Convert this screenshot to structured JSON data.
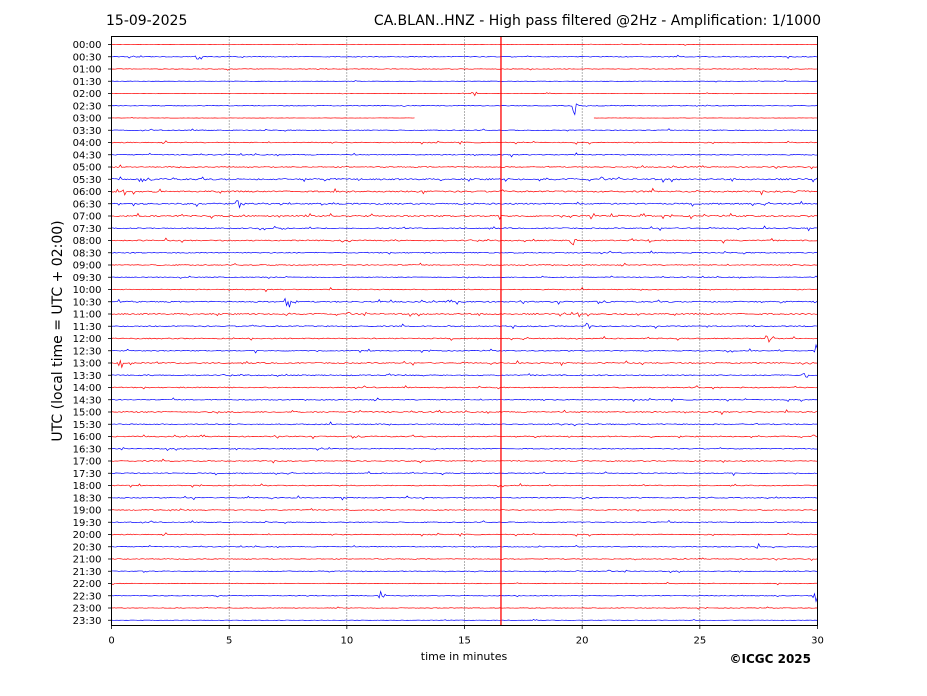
{
  "chart_data": {
    "type": "line",
    "title_left": "15-09-2025",
    "title": "CA.BLAN..HNZ - High pass filtered @2Hz - Amplification: 1/1000",
    "xlabel": "time in minutes",
    "ylabel": "UTC (local time = UTC + 02:00)",
    "copyright": "©ICGC 2025",
    "xlim": [
      0,
      30
    ],
    "x_ticks": [
      "0",
      "5",
      "10",
      "15",
      "20",
      "25",
      "30"
    ],
    "x_tick_values": [
      0,
      5,
      10,
      15,
      20,
      25,
      30
    ],
    "grid": "vertical dotted",
    "trace_colors": [
      "#ff0000",
      "#0000ff"
    ],
    "marker_color": "#ff0000",
    "marker_minute": 16.55,
    "y_labels": [
      "00:00",
      "00:30",
      "01:00",
      "01:30",
      "02:00",
      "02:30",
      "03:00",
      "03:30",
      "04:00",
      "04:30",
      "05:00",
      "05:30",
      "06:00",
      "06:30",
      "07:00",
      "07:30",
      "08:00",
      "08:30",
      "09:00",
      "09:30",
      "10:00",
      "10:30",
      "11:00",
      "11:30",
      "12:00",
      "12:30",
      "13:00",
      "13:30",
      "14:00",
      "14:30",
      "15:00",
      "15:30",
      "16:00",
      "16:30",
      "17:00",
      "17:30",
      "18:00",
      "18:30",
      "19:00",
      "19:30",
      "20:00",
      "20:30",
      "21:00",
      "21:30",
      "22:00",
      "22:30",
      "23:00",
      "23:30"
    ],
    "noise_level": [
      0.3,
      0.5,
      0.4,
      0.3,
      0.3,
      0.4,
      0.2,
      0.5,
      0.6,
      0.6,
      0.6,
      1.0,
      1.0,
      0.9,
      0.9,
      0.7,
      0.8,
      0.7,
      0.6,
      0.5,
      0.6,
      0.8,
      0.8,
      0.7,
      0.7,
      0.6,
      0.7,
      0.7,
      0.7,
      0.6,
      0.7,
      0.7,
      0.7,
      0.6,
      0.6,
      0.6,
      0.6,
      0.6,
      0.6,
      0.6,
      0.6,
      0.5,
      0.5,
      0.5,
      0.4,
      0.4,
      0.4,
      0.3
    ],
    "events": [
      {
        "row": 1,
        "minute": 3.7,
        "amp": 9
      },
      {
        "row": 4,
        "minute": 15.4,
        "amp": 4
      },
      {
        "row": 5,
        "minute": 19.7,
        "amp": 10
      },
      {
        "row": 6,
        "minute": 20.1,
        "amp": 9
      },
      {
        "row": 13,
        "minute": 5.4,
        "amp": 7
      },
      {
        "row": 16,
        "minute": 19.6,
        "amp": 6
      },
      {
        "row": 21,
        "minute": 7.5,
        "amp": 10
      },
      {
        "row": 22,
        "minute": 7.5,
        "amp": 7
      },
      {
        "row": 23,
        "minute": 20.2,
        "amp": 6
      },
      {
        "row": 24,
        "minute": 27.9,
        "amp": 6
      },
      {
        "row": 25,
        "minute": 29.9,
        "amp": 10
      },
      {
        "row": 26,
        "minute": 0.4,
        "amp": 7
      },
      {
        "row": 27,
        "minute": 29.5,
        "amp": 5
      },
      {
        "row": 41,
        "minute": 27.5,
        "amp": 6
      },
      {
        "row": 45,
        "minute": 11.5,
        "amp": 7
      },
      {
        "row": 45,
        "minute": 29.95,
        "amp": 8
      }
    ],
    "gaps": [
      {
        "row": 6,
        "from": 12.9,
        "to": 20.5
      }
    ]
  }
}
